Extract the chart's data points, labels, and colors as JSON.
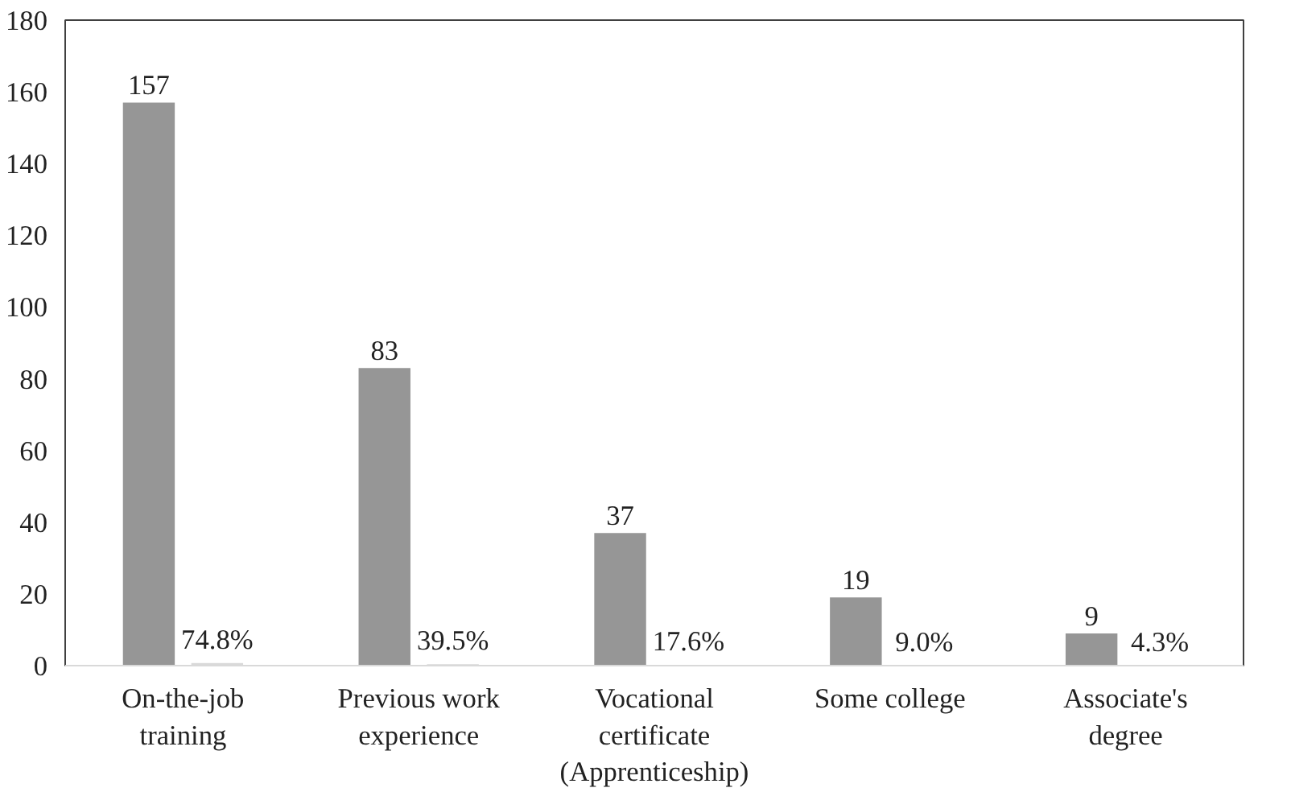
{
  "chart_data": {
    "type": "bar",
    "categories": [
      "On-the-job\ntraining",
      "Previous work\nexperience",
      "Vocational\ncertificate\n(Apprenticeship)",
      "Some college",
      "Associate's\ndegree"
    ],
    "series": [
      {
        "color": "#969696",
        "values": [
          157,
          83,
          37,
          19,
          9
        ],
        "value_labels": [
          "157",
          "83",
          "37",
          "19",
          "9"
        ]
      },
      {
        "color": "#d9d9d9",
        "values": [
          0.748,
          0.395,
          0.176,
          0.09,
          0.043
        ],
        "value_labels": [
          "74.8%",
          "39.5%",
          "17.6%",
          "9.0%",
          "4.3%"
        ]
      }
    ],
    "ylim": [
      0,
      180
    ],
    "yticks": [
      0,
      20,
      40,
      60,
      80,
      100,
      120,
      140,
      160,
      180
    ],
    "grid": false
  }
}
